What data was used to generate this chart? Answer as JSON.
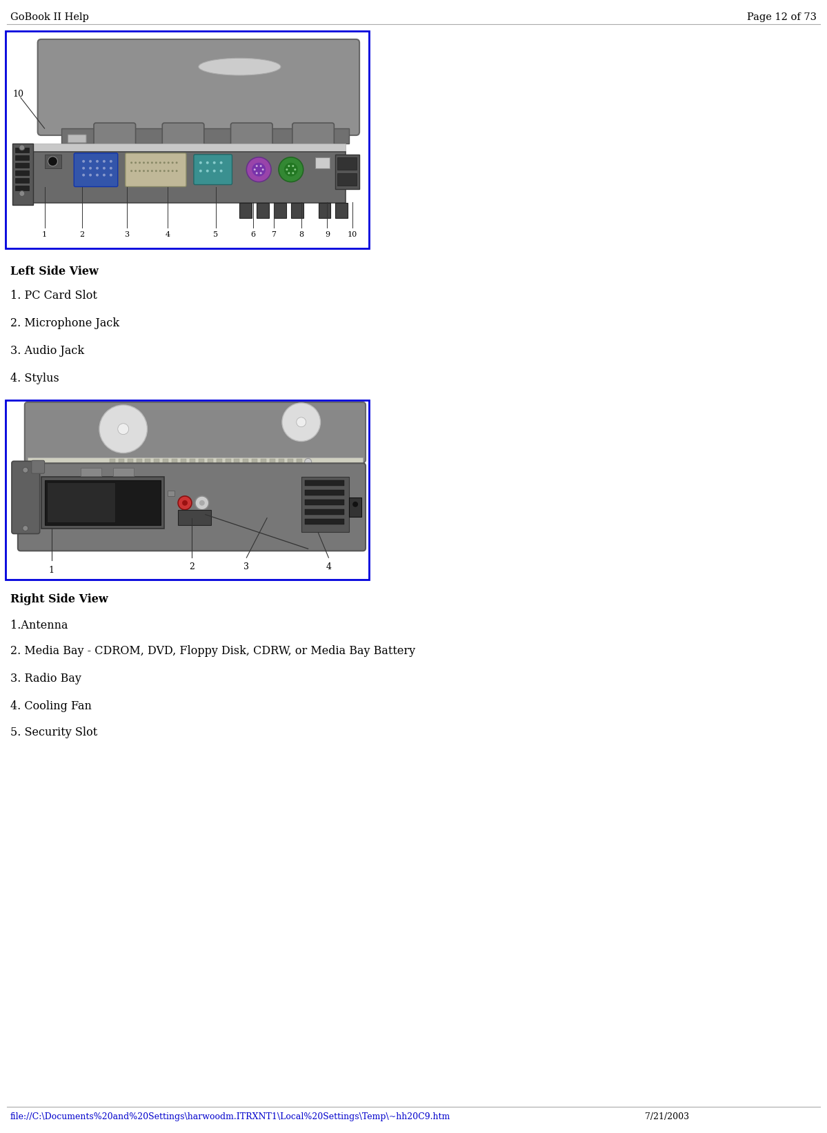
{
  "bg_color": "#ffffff",
  "header_left": "GoBook II Help",
  "header_right": "Page 12 of 73",
  "header_font_size": 10.5,
  "section1_title": "Left Side View",
  "section1_items": [
    "1. PC Card Slot",
    "2. Microphone Jack",
    "3. Audio Jack",
    "4. Stylus"
  ],
  "section2_title": "Right Side View",
  "section2_items": [
    "1.Antenna",
    "2. Media Bay - CDROM, DVD, Floppy Disk, CDRW, or Media Bay Battery",
    "3. Radio Bay",
    "4. Cooling Fan",
    "5. Security Slot"
  ],
  "footer_text": "file://C:\\Documents%20and%20Settings\\harwoodm.ITRXNT1\\Local%20Settings\\Temp\\~hh20C9.htm",
  "footer_date": "7/21/2003",
  "box_color": "#0000dd",
  "text_color": "#000000",
  "figsize": [
    11.99,
    16.42
  ],
  "dpi": 100
}
